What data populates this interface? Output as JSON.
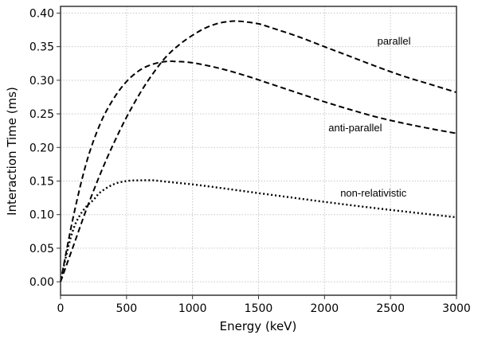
{
  "chart_data": {
    "type": "line",
    "title": "",
    "xlabel": "Energy (keV)",
    "ylabel": "Interaction Time (ms)",
    "xlim": [
      0,
      3000
    ],
    "ylim": [
      -0.02,
      0.41
    ],
    "xticks": [
      "0",
      "500",
      "1000",
      "1500",
      "2000",
      "2500",
      "3000"
    ],
    "yticks": [
      "0.00",
      "0.05",
      "0.10",
      "0.15",
      "0.20",
      "0.25",
      "0.30",
      "0.35",
      "0.40"
    ],
    "grid": true,
    "series": [
      {
        "name": "parallel",
        "style": "dashed",
        "x": [
          0,
          100,
          200,
          300,
          400,
          500,
          600,
          700,
          800,
          900,
          1000,
          1100,
          1200,
          1300,
          1350,
          1400,
          1500,
          1600,
          1800,
          2000,
          2200,
          2400,
          2600,
          2800,
          3000
        ],
        "y": [
          0.0,
          0.055,
          0.11,
          0.16,
          0.205,
          0.245,
          0.28,
          0.31,
          0.335,
          0.353,
          0.367,
          0.378,
          0.385,
          0.388,
          0.388,
          0.387,
          0.384,
          0.378,
          0.365,
          0.35,
          0.335,
          0.32,
          0.306,
          0.294,
          0.282
        ]
      },
      {
        "name": "anti-parallel",
        "style": "dashed",
        "x": [
          0,
          100,
          200,
          300,
          400,
          500,
          600,
          700,
          800,
          870,
          1000,
          1200,
          1400,
          1600,
          1800,
          2000,
          2200,
          2400,
          2600,
          2800,
          3000
        ],
        "y": [
          0.0,
          0.1,
          0.18,
          0.235,
          0.272,
          0.298,
          0.315,
          0.324,
          0.328,
          0.328,
          0.326,
          0.318,
          0.307,
          0.294,
          0.281,
          0.268,
          0.256,
          0.245,
          0.236,
          0.228,
          0.221
        ]
      },
      {
        "name": "non-relativistic",
        "style": "dotted",
        "x": [
          0,
          50,
          100,
          150,
          200,
          250,
          300,
          400,
          500,
          600,
          700,
          800,
          1000,
          1200,
          1500,
          2000,
          2500,
          3000
        ],
        "y": [
          0.0,
          0.045,
          0.08,
          0.1,
          0.113,
          0.122,
          0.133,
          0.145,
          0.15,
          0.151,
          0.151,
          0.149,
          0.145,
          0.14,
          0.132,
          0.119,
          0.107,
          0.096
        ]
      }
    ],
    "annotations": [
      {
        "text": "parallel",
        "x": 2400,
        "y": 0.353
      },
      {
        "text": "anti-parallel",
        "x": 2030,
        "y": 0.224
      },
      {
        "text": "non-relativistic",
        "x": 2120,
        "y": 0.127
      }
    ]
  }
}
